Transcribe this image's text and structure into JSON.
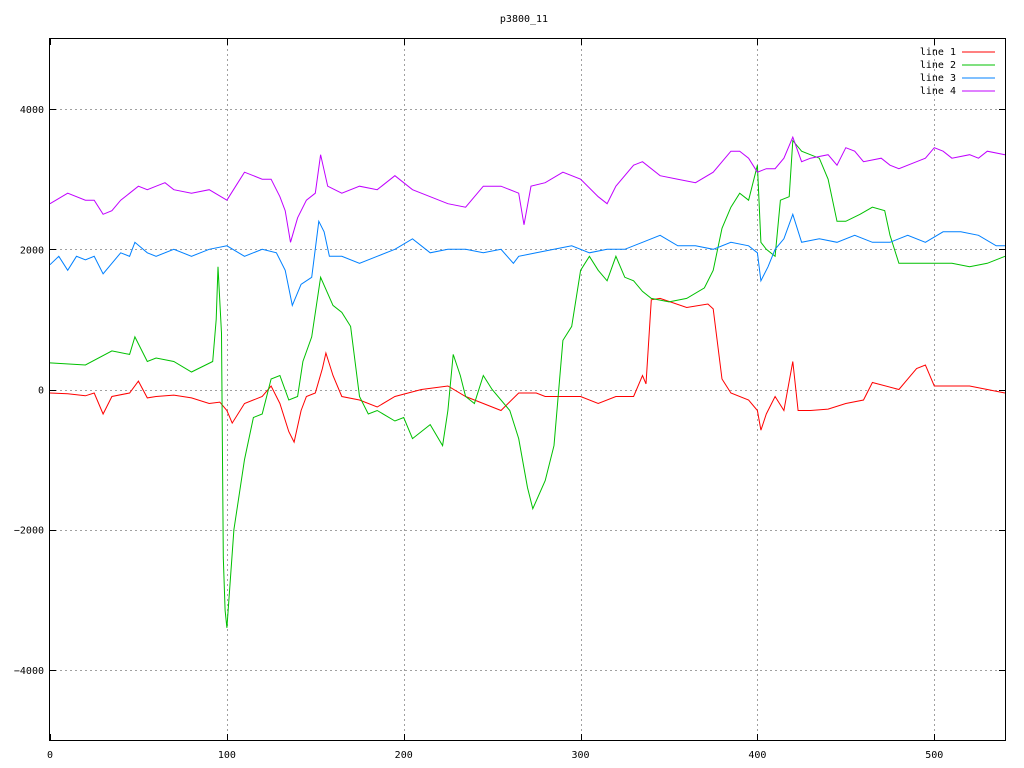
{
  "chart_data": {
    "type": "line",
    "title": "p3800_11",
    "xlabel": "",
    "ylabel": "",
    "xlim": [
      0,
      540
    ],
    "ylim": [
      -5000,
      5000
    ],
    "xticks": [
      0,
      100,
      200,
      300,
      400,
      500
    ],
    "yticks": [
      -4000,
      -2000,
      0,
      2000,
      4000
    ],
    "grid": true,
    "legend_position": "top-right",
    "series": [
      {
        "name": "line 1",
        "color": "#ff0000",
        "points": [
          [
            0,
            -50
          ],
          [
            10,
            -60
          ],
          [
            20,
            -90
          ],
          [
            25,
            -50
          ],
          [
            30,
            -350
          ],
          [
            35,
            -100
          ],
          [
            45,
            -50
          ],
          [
            50,
            120
          ],
          [
            55,
            -120
          ],
          [
            60,
            -100
          ],
          [
            70,
            -80
          ],
          [
            80,
            -120
          ],
          [
            90,
            -200
          ],
          [
            96,
            -180
          ],
          [
            100,
            -300
          ],
          [
            103,
            -480
          ],
          [
            110,
            -200
          ],
          [
            120,
            -100
          ],
          [
            125,
            50
          ],
          [
            130,
            -200
          ],
          [
            135,
            -600
          ],
          [
            138,
            -750
          ],
          [
            142,
            -300
          ],
          [
            145,
            -100
          ],
          [
            150,
            -50
          ],
          [
            154,
            300
          ],
          [
            156,
            520
          ],
          [
            160,
            200
          ],
          [
            165,
            -100
          ],
          [
            175,
            -150
          ],
          [
            185,
            -250
          ],
          [
            195,
            -100
          ],
          [
            210,
            0
          ],
          [
            225,
            50
          ],
          [
            235,
            -100
          ],
          [
            245,
            -200
          ],
          [
            255,
            -300
          ],
          [
            265,
            -50
          ],
          [
            275,
            -50
          ],
          [
            280,
            -100
          ],
          [
            290,
            -100
          ],
          [
            300,
            -100
          ],
          [
            310,
            -200
          ],
          [
            320,
            -100
          ],
          [
            330,
            -100
          ],
          [
            335,
            200
          ],
          [
            337,
            80
          ],
          [
            340,
            1280
          ],
          [
            345,
            1300
          ],
          [
            360,
            1170
          ],
          [
            372,
            1220
          ],
          [
            375,
            1150
          ],
          [
            380,
            150
          ],
          [
            385,
            -50
          ],
          [
            395,
            -150
          ],
          [
            400,
            -300
          ],
          [
            402,
            -580
          ],
          [
            405,
            -350
          ],
          [
            410,
            -100
          ],
          [
            415,
            -300
          ],
          [
            420,
            400
          ],
          [
            423,
            -300
          ],
          [
            430,
            -300
          ],
          [
            440,
            -280
          ],
          [
            450,
            -200
          ],
          [
            460,
            -150
          ],
          [
            465,
            100
          ],
          [
            480,
            0
          ],
          [
            490,
            300
          ],
          [
            495,
            350
          ],
          [
            500,
            50
          ],
          [
            510,
            50
          ],
          [
            520,
            50
          ],
          [
            530,
            0
          ],
          [
            540,
            -50
          ]
        ]
      },
      {
        "name": "line 2",
        "color": "#00c000",
        "points": [
          [
            0,
            380
          ],
          [
            20,
            350
          ],
          [
            35,
            550
          ],
          [
            45,
            500
          ],
          [
            48,
            750
          ],
          [
            55,
            400
          ],
          [
            60,
            450
          ],
          [
            70,
            400
          ],
          [
            80,
            250
          ],
          [
            92,
            400
          ],
          [
            94,
            1000
          ],
          [
            95,
            1750
          ],
          [
            97,
            800
          ],
          [
            98,
            -2400
          ],
          [
            99,
            -3150
          ],
          [
            100,
            -3400
          ],
          [
            104,
            -2000
          ],
          [
            110,
            -1000
          ],
          [
            115,
            -400
          ],
          [
            120,
            -350
          ],
          [
            125,
            150
          ],
          [
            130,
            200
          ],
          [
            135,
            -150
          ],
          [
            140,
            -100
          ],
          [
            143,
            400
          ],
          [
            148,
            750
          ],
          [
            153,
            1600
          ],
          [
            160,
            1200
          ],
          [
            165,
            1100
          ],
          [
            170,
            900
          ],
          [
            175,
            -100
          ],
          [
            180,
            -350
          ],
          [
            185,
            -300
          ],
          [
            195,
            -450
          ],
          [
            200,
            -400
          ],
          [
            205,
            -700
          ],
          [
            215,
            -500
          ],
          [
            222,
            -800
          ],
          [
            225,
            -300
          ],
          [
            228,
            500
          ],
          [
            232,
            200
          ],
          [
            235,
            -100
          ],
          [
            240,
            -200
          ],
          [
            245,
            200
          ],
          [
            250,
            0
          ],
          [
            260,
            -300
          ],
          [
            265,
            -700
          ],
          [
            270,
            -1400
          ],
          [
            273,
            -1700
          ],
          [
            280,
            -1300
          ],
          [
            285,
            -800
          ],
          [
            290,
            700
          ],
          [
            295,
            900
          ],
          [
            300,
            1700
          ],
          [
            305,
            1900
          ],
          [
            310,
            1700
          ],
          [
            315,
            1550
          ],
          [
            320,
            1900
          ],
          [
            325,
            1600
          ],
          [
            330,
            1550
          ],
          [
            335,
            1400
          ],
          [
            340,
            1300
          ],
          [
            350,
            1250
          ],
          [
            360,
            1300
          ],
          [
            370,
            1450
          ],
          [
            375,
            1700
          ],
          [
            380,
            2300
          ],
          [
            385,
            2600
          ],
          [
            390,
            2800
          ],
          [
            395,
            2700
          ],
          [
            400,
            3200
          ],
          [
            402,
            2100
          ],
          [
            405,
            2000
          ],
          [
            410,
            1900
          ],
          [
            413,
            2700
          ],
          [
            418,
            2750
          ],
          [
            420,
            3550
          ],
          [
            425,
            3400
          ],
          [
            435,
            3300
          ],
          [
            440,
            3000
          ],
          [
            445,
            2400
          ],
          [
            450,
            2400
          ],
          [
            458,
            2500
          ],
          [
            465,
            2600
          ],
          [
            472,
            2550
          ],
          [
            475,
            2200
          ],
          [
            480,
            1800
          ],
          [
            490,
            1800
          ],
          [
            500,
            1800
          ],
          [
            510,
            1800
          ],
          [
            520,
            1750
          ],
          [
            530,
            1800
          ],
          [
            540,
            1900
          ]
        ]
      },
      {
        "name": "line 3",
        "color": "#0080ff",
        "points": [
          [
            0,
            1780
          ],
          [
            5,
            1900
          ],
          [
            10,
            1700
          ],
          [
            15,
            1900
          ],
          [
            20,
            1850
          ],
          [
            25,
            1900
          ],
          [
            30,
            1650
          ],
          [
            35,
            1800
          ],
          [
            40,
            1950
          ],
          [
            45,
            1900
          ],
          [
            48,
            2100
          ],
          [
            55,
            1950
          ],
          [
            60,
            1900
          ],
          [
            70,
            2000
          ],
          [
            80,
            1900
          ],
          [
            90,
            2000
          ],
          [
            100,
            2050
          ],
          [
            110,
            1900
          ],
          [
            120,
            2000
          ],
          [
            128,
            1950
          ],
          [
            133,
            1700
          ],
          [
            137,
            1200
          ],
          [
            142,
            1500
          ],
          [
            148,
            1600
          ],
          [
            152,
            2400
          ],
          [
            155,
            2250
          ],
          [
            158,
            1900
          ],
          [
            165,
            1900
          ],
          [
            175,
            1800
          ],
          [
            185,
            1900
          ],
          [
            195,
            2000
          ],
          [
            205,
            2150
          ],
          [
            215,
            1950
          ],
          [
            225,
            2000
          ],
          [
            235,
            2000
          ],
          [
            245,
            1950
          ],
          [
            255,
            2000
          ],
          [
            262,
            1800
          ],
          [
            265,
            1900
          ],
          [
            275,
            1950
          ],
          [
            285,
            2000
          ],
          [
            295,
            2050
          ],
          [
            305,
            1950
          ],
          [
            315,
            2000
          ],
          [
            325,
            2000
          ],
          [
            335,
            2100
          ],
          [
            345,
            2200
          ],
          [
            355,
            2050
          ],
          [
            365,
            2050
          ],
          [
            375,
            2000
          ],
          [
            385,
            2100
          ],
          [
            395,
            2050
          ],
          [
            400,
            1950
          ],
          [
            402,
            1550
          ],
          [
            406,
            1750
          ],
          [
            410,
            2000
          ],
          [
            415,
            2150
          ],
          [
            420,
            2500
          ],
          [
            425,
            2100
          ],
          [
            435,
            2150
          ],
          [
            445,
            2100
          ],
          [
            455,
            2200
          ],
          [
            465,
            2100
          ],
          [
            475,
            2100
          ],
          [
            485,
            2200
          ],
          [
            495,
            2100
          ],
          [
            505,
            2250
          ],
          [
            515,
            2250
          ],
          [
            525,
            2200
          ],
          [
            535,
            2050
          ],
          [
            540,
            2050
          ]
        ]
      },
      {
        "name": "line 4",
        "color": "#c000ff",
        "points": [
          [
            0,
            2650
          ],
          [
            10,
            2800
          ],
          [
            20,
            2700
          ],
          [
            25,
            2700
          ],
          [
            30,
            2500
          ],
          [
            35,
            2550
          ],
          [
            40,
            2700
          ],
          [
            45,
            2800
          ],
          [
            50,
            2900
          ],
          [
            55,
            2850
          ],
          [
            60,
            2900
          ],
          [
            65,
            2950
          ],
          [
            70,
            2850
          ],
          [
            80,
            2800
          ],
          [
            90,
            2850
          ],
          [
            100,
            2700
          ],
          [
            105,
            2900
          ],
          [
            110,
            3100
          ],
          [
            115,
            3050
          ],
          [
            120,
            3000
          ],
          [
            125,
            3000
          ],
          [
            130,
            2750
          ],
          [
            133,
            2550
          ],
          [
            136,
            2100
          ],
          [
            140,
            2450
          ],
          [
            145,
            2700
          ],
          [
            150,
            2800
          ],
          [
            153,
            3350
          ],
          [
            157,
            2900
          ],
          [
            165,
            2800
          ],
          [
            175,
            2900
          ],
          [
            185,
            2850
          ],
          [
            195,
            3050
          ],
          [
            205,
            2850
          ],
          [
            215,
            2750
          ],
          [
            225,
            2650
          ],
          [
            235,
            2600
          ],
          [
            245,
            2900
          ],
          [
            255,
            2900
          ],
          [
            265,
            2800
          ],
          [
            268,
            2350
          ],
          [
            272,
            2900
          ],
          [
            280,
            2950
          ],
          [
            290,
            3100
          ],
          [
            300,
            3000
          ],
          [
            310,
            2750
          ],
          [
            315,
            2650
          ],
          [
            320,
            2900
          ],
          [
            330,
            3200
          ],
          [
            335,
            3250
          ],
          [
            345,
            3050
          ],
          [
            355,
            3000
          ],
          [
            365,
            2950
          ],
          [
            375,
            3100
          ],
          [
            385,
            3400
          ],
          [
            390,
            3400
          ],
          [
            395,
            3300
          ],
          [
            400,
            3100
          ],
          [
            405,
            3150
          ],
          [
            410,
            3150
          ],
          [
            415,
            3300
          ],
          [
            420,
            3600
          ],
          [
            425,
            3250
          ],
          [
            430,
            3300
          ],
          [
            440,
            3350
          ],
          [
            445,
            3200
          ],
          [
            450,
            3450
          ],
          [
            455,
            3400
          ],
          [
            460,
            3250
          ],
          [
            470,
            3300
          ],
          [
            475,
            3200
          ],
          [
            480,
            3150
          ],
          [
            490,
            3250
          ],
          [
            495,
            3300
          ],
          [
            500,
            3450
          ],
          [
            505,
            3400
          ],
          [
            510,
            3300
          ],
          [
            520,
            3350
          ],
          [
            525,
            3300
          ],
          [
            530,
            3400
          ],
          [
            540,
            3350
          ]
        ]
      }
    ]
  }
}
